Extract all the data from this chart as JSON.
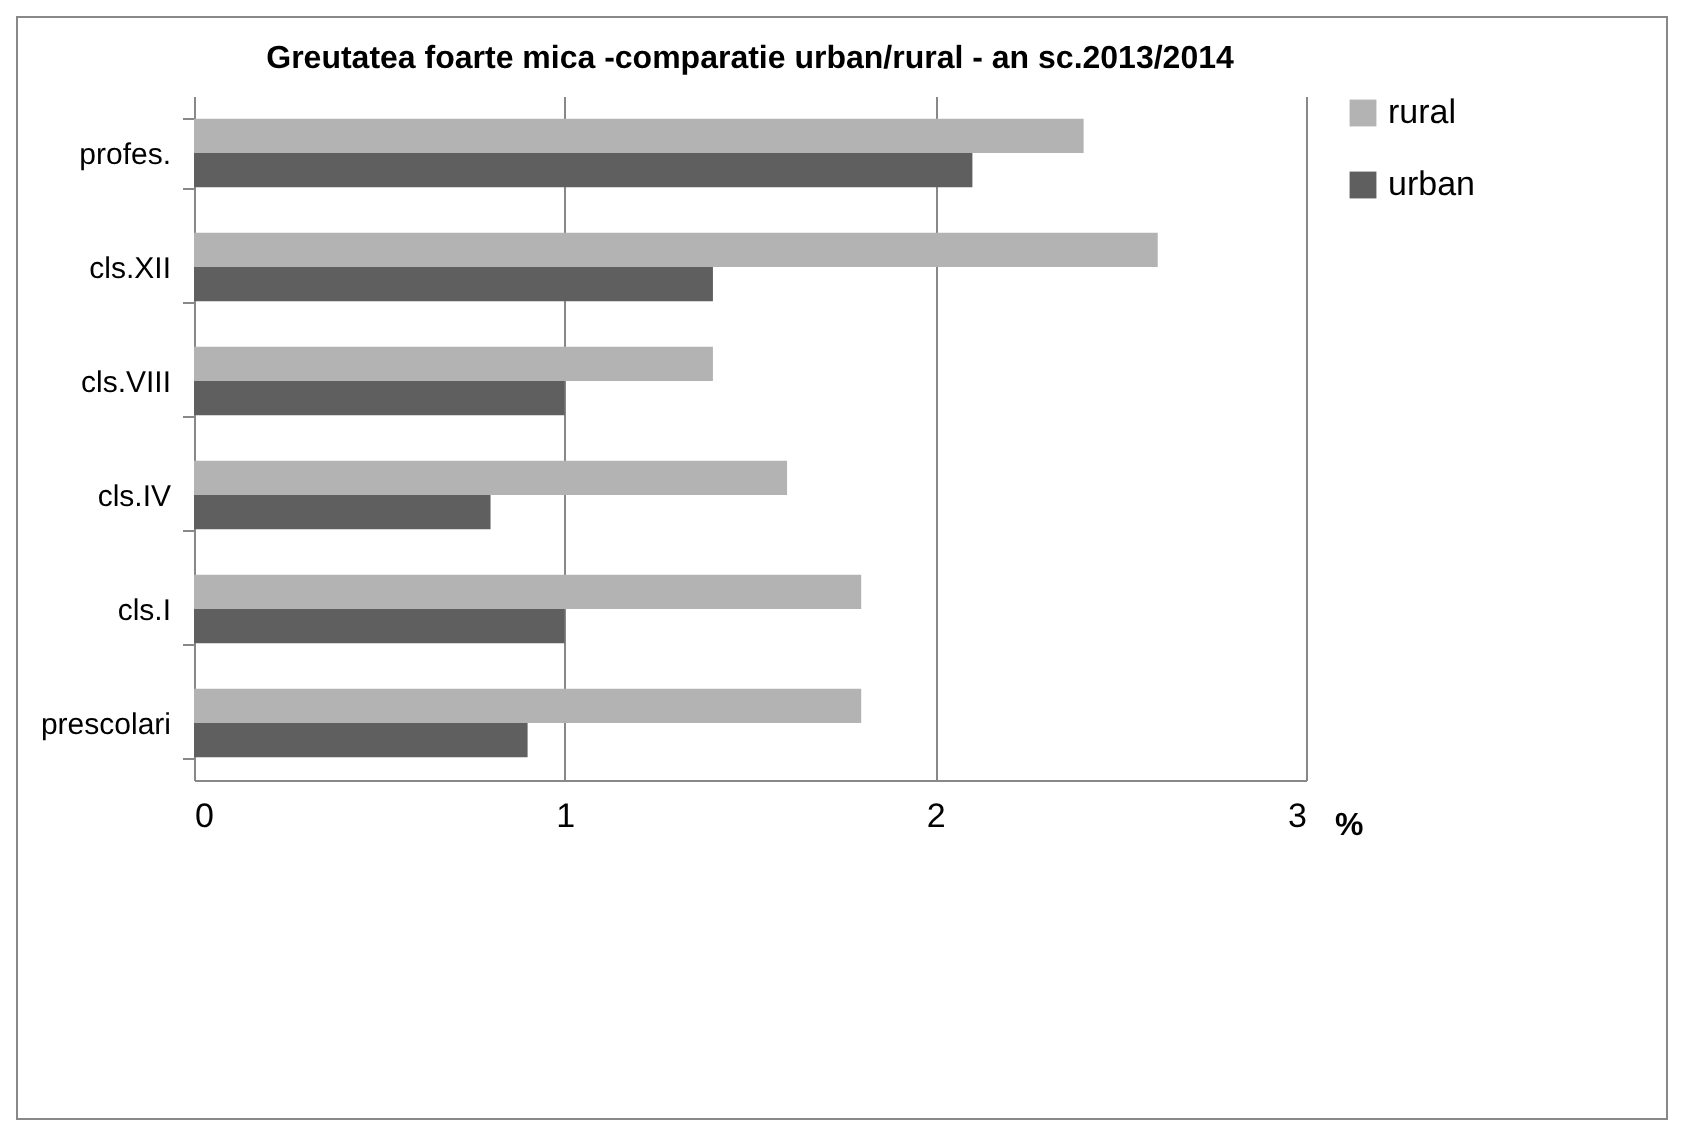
{
  "chart_data": {
    "type": "bar",
    "orientation": "horizontal",
    "title": "Greutatea foarte mica -comparatie urban/rural - an sc.2013/2014",
    "xlabel": "%",
    "categories": [
      "profes.",
      "cls.XII",
      "cls.VIII",
      "cls.IV",
      "cls.I",
      "prescolari"
    ],
    "series": [
      {
        "name": "rural",
        "color": "#b3b3b3",
        "values": [
          2.4,
          2.6,
          1.4,
          1.6,
          1.8,
          1.8
        ]
      },
      {
        "name": "urban",
        "color": "#5f5f5f",
        "values": [
          2.1,
          1.4,
          1.0,
          0.8,
          1.0,
          0.9
        ]
      }
    ],
    "xlim": [
      0,
      3
    ],
    "xticks": [
      0,
      1,
      2,
      3
    ],
    "grid": "x",
    "legend": "right"
  }
}
